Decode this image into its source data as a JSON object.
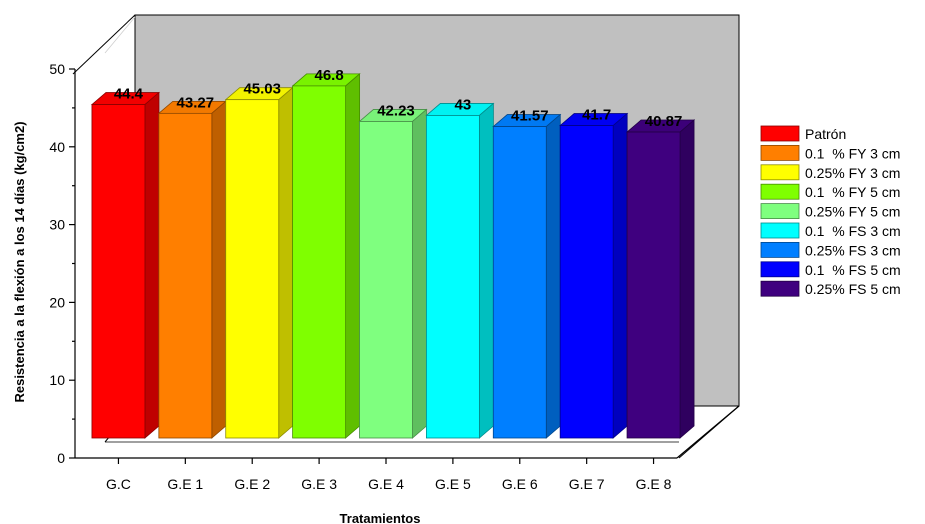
{
  "chart_data": {
    "type": "bar",
    "title": "",
    "xlabel": "Tratamientos",
    "ylabel": "Resistencia a la flexión a los 14 días (kg/cm2)",
    "ylim": [
      0,
      50
    ],
    "yticks": [
      0,
      10,
      20,
      30,
      40,
      50
    ],
    "grid": false,
    "three_d": true,
    "legend_position": "right",
    "categories": [
      "G.C",
      "G.E 1",
      "G.E 2",
      "G.E 3",
      "G.E 4",
      "G.E 5",
      "G.E 6",
      "G.E 7",
      "G.E 8"
    ],
    "values": [
      44.4,
      43.27,
      45.03,
      46.8,
      42.23,
      43,
      41.57,
      41.7,
      40.87
    ],
    "value_labels": [
      "44.4",
      "43.27",
      "45.03",
      "46.8",
      "42.23",
      "43",
      "41.57",
      "41.7",
      "40.87"
    ],
    "series_names": [
      "Patrón",
      "0.1  % FY 3 cm",
      "0.25% FY 3 cm",
      "0.1  % FY 5 cm",
      "0.25% FY 5 cm",
      "0.1  % FS 3 cm",
      "0.25% FS 3 cm",
      "0.1  % FS 5 cm",
      "0.25% FS 5 cm"
    ],
    "colors": [
      "#ff0000",
      "#ff7f00",
      "#ffff00",
      "#7fff00",
      "#7fff7f",
      "#00ffff",
      "#007fff",
      "#0000ff",
      "#3f007f"
    ]
  }
}
